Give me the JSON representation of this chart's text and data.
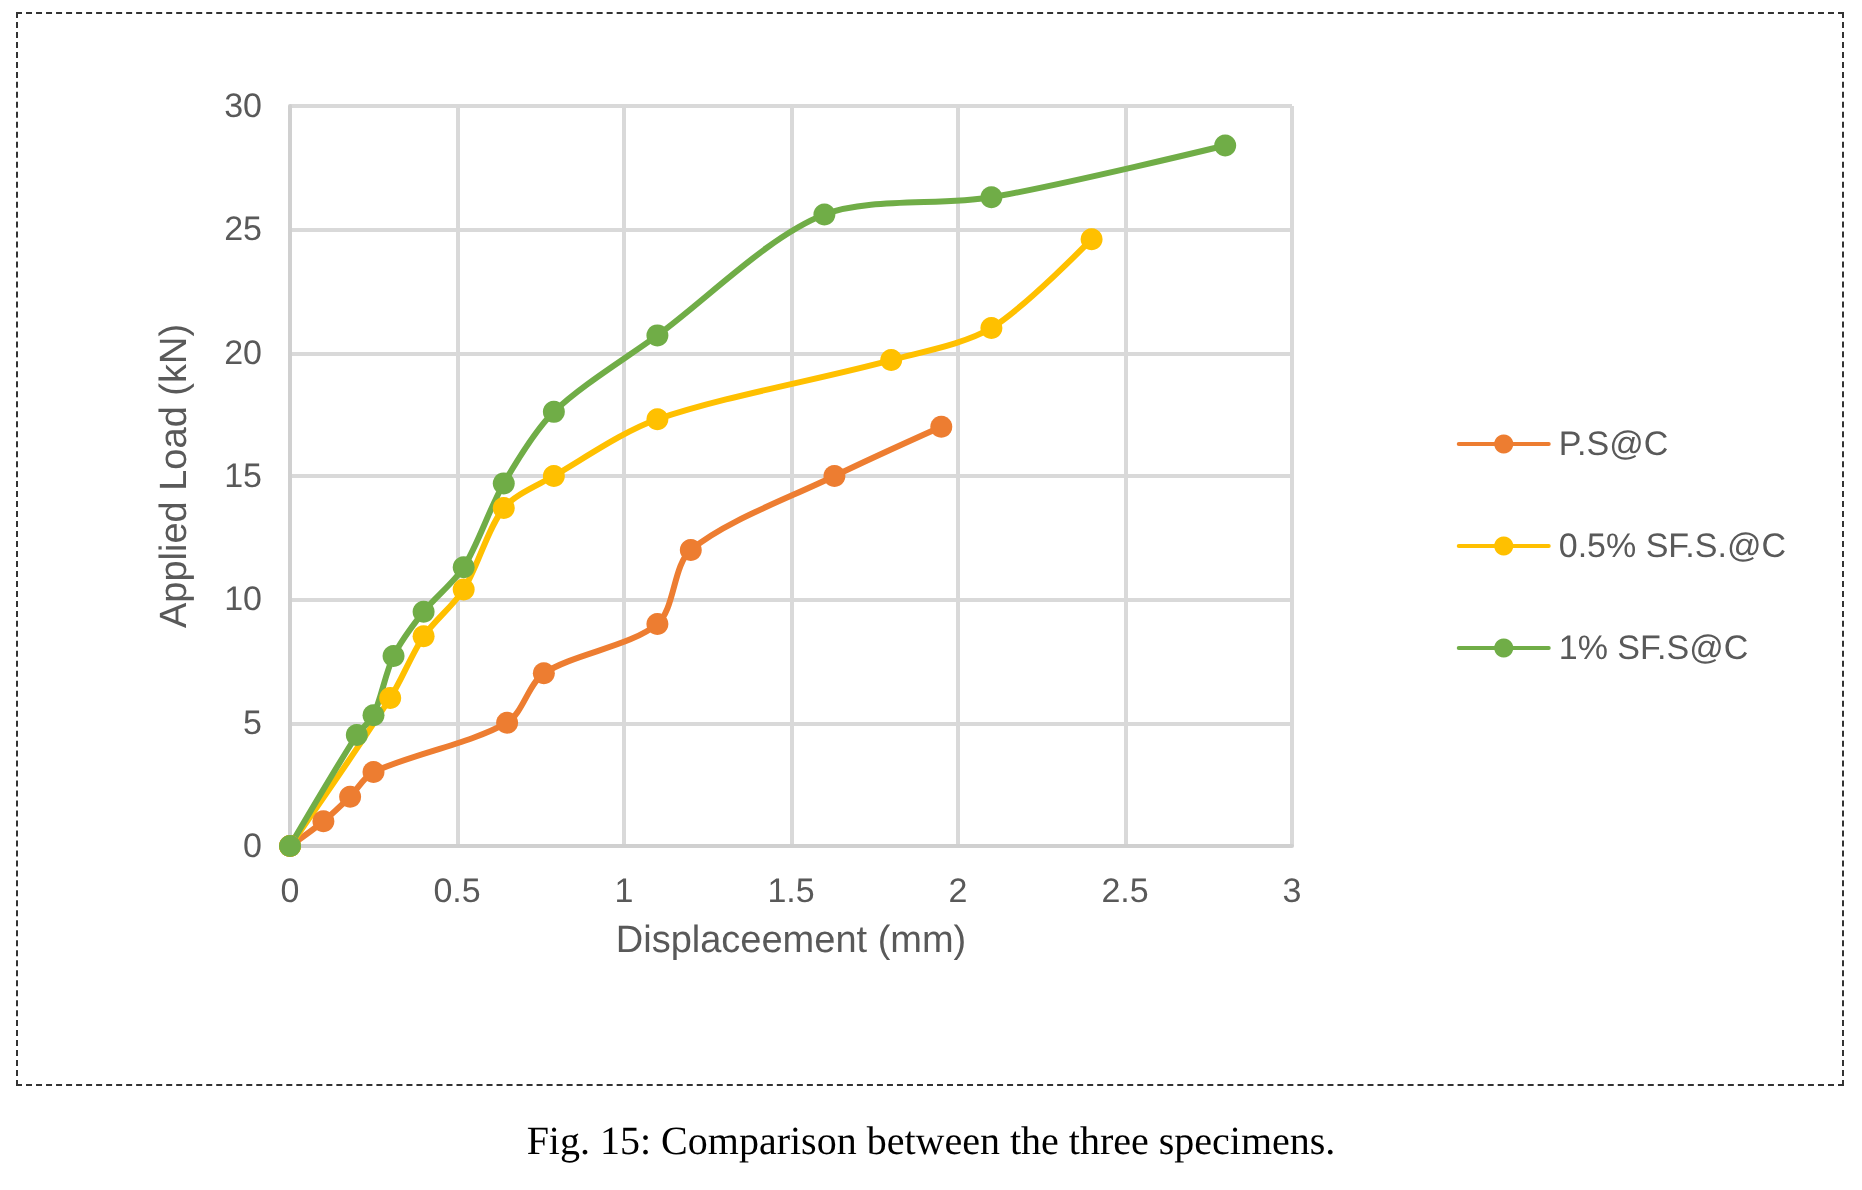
{
  "chart_data": {
    "type": "line",
    "xlabel": "Displaceement (mm)",
    "ylabel": "Applied Load (kN)",
    "xlim": [
      0,
      3
    ],
    "xticks": [
      0,
      0.5,
      1,
      1.5,
      2,
      2.5,
      3
    ],
    "ylim": [
      0,
      30
    ],
    "yticks": [
      0,
      5,
      10,
      15,
      20,
      25,
      30
    ],
    "grid": true,
    "legend": "right",
    "marker": "circle",
    "line_style": "solid",
    "annotations": [
      "Fig. 15: Comparison between the three specimens."
    ],
    "series": [
      {
        "name": "P.S@C",
        "color": "#ed7d31",
        "x": [
          0,
          0.1,
          0.18,
          0.25,
          0.65,
          0.76,
          1.1,
          1.2,
          1.63,
          1.95
        ],
        "values": [
          0,
          1,
          2,
          3,
          5,
          7,
          9,
          12,
          15,
          17
        ]
      },
      {
        "name": "0.5% SF.S.@C",
        "color": "#ffc000",
        "x": [
          0,
          0.3,
          0.4,
          0.52,
          0.64,
          0.79,
          1.1,
          1.8,
          2.1,
          2.4
        ],
        "values": [
          0,
          6,
          8.5,
          10.4,
          13.7,
          15,
          17.3,
          19.7,
          21,
          24.6
        ]
      },
      {
        "name": "1% SF.S@C",
        "color": "#70ad47",
        "x": [
          0,
          0.2,
          0.25,
          0.31,
          0.4,
          0.52,
          0.64,
          0.79,
          1.1,
          1.6,
          2.1,
          2.8
        ],
        "values": [
          0,
          4.5,
          5.3,
          7.7,
          9.5,
          11.3,
          14.7,
          17.6,
          20.7,
          25.6,
          26.3,
          28.4
        ]
      }
    ]
  }
}
